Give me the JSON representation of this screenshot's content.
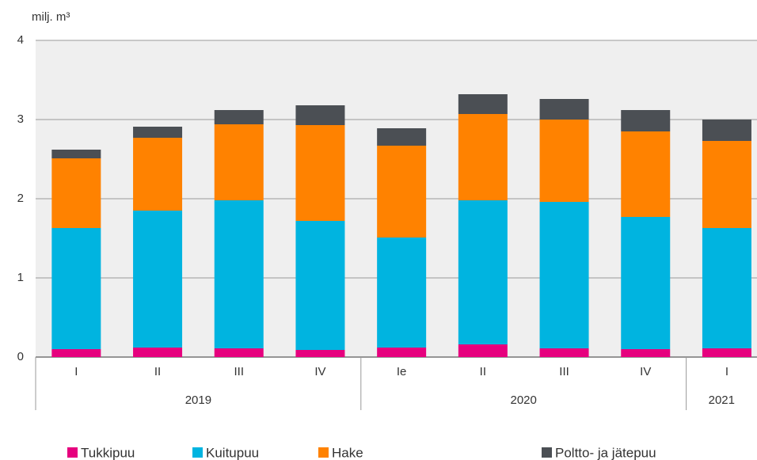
{
  "chart_data": {
    "type": "stacked_bar",
    "y_label": "milj. m³",
    "categories": [
      "I",
      "II",
      "III",
      "IV",
      "Ie",
      "II",
      "III",
      "IV",
      "I"
    ],
    "groups": [
      {
        "label": "2019",
        "span": 4
      },
      {
        "label": "2020",
        "span": 4
      },
      {
        "label": "2021",
        "span": 1
      }
    ],
    "series": [
      {
        "name": "Tukkipuu",
        "color": "#e6007e",
        "values": [
          0.1,
          0.12,
          0.11,
          0.09,
          0.12,
          0.16,
          0.11,
          0.1,
          0.11
        ]
      },
      {
        "name": "Kuitupuu",
        "color": "#00b4e0",
        "values": [
          1.53,
          1.73,
          1.87,
          1.63,
          1.39,
          1.82,
          1.85,
          1.67,
          1.52
        ]
      },
      {
        "name": "Hake",
        "color": "#ff8200",
        "values": [
          0.88,
          0.92,
          0.96,
          1.21,
          1.16,
          1.09,
          1.04,
          1.08,
          1.1
        ]
      },
      {
        "name": "Poltto- ja jätepuu",
        "color": "#4b4f54",
        "values": [
          0.11,
          0.14,
          0.18,
          0.25,
          0.22,
          0.25,
          0.26,
          0.27,
          0.27
        ]
      }
    ],
    "ylim": [
      0,
      4
    ],
    "yticks": [
      0,
      1,
      2,
      3,
      4
    ],
    "grid": true
  }
}
